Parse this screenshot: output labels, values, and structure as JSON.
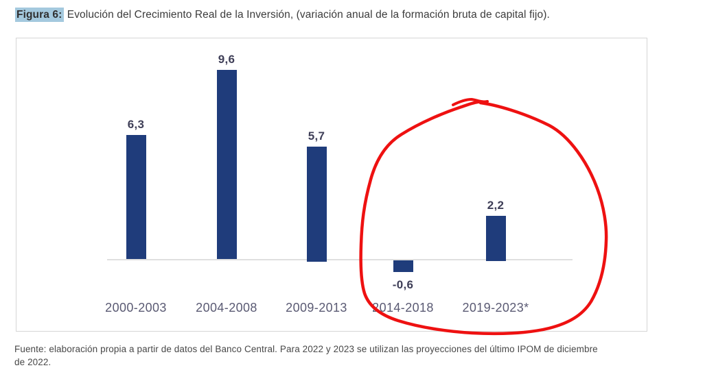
{
  "figure": {
    "label": "Figura 6:",
    "title": " Evolución del Crecimiento Real de la Inversión, (variación anual de la formación bruta de capital fijo).",
    "source_line1": "Fuente: elaboración propia a partir de datos del Banco Central. Para 2022 y 2023 se utilizan las proyecciones del último IPOM de diciembre",
    "source_line2": "de 2022."
  },
  "chart_data": {
    "type": "bar",
    "title": "Evolución del Crecimiento Real de la Inversión (variación anual de la formación bruta de capital fijo)",
    "categories": [
      "2000-2003",
      "2004-2008",
      "2009-2013",
      "2014-2018",
      "2019-2023*"
    ],
    "values": [
      6.3,
      9.6,
      5.7,
      -0.6,
      2.2
    ],
    "value_labels": [
      "6,3",
      "9,6",
      "5,7",
      "-0,6",
      "2,2"
    ],
    "xlabel": "",
    "ylabel": "",
    "ylim": [
      -2,
      10.5
    ],
    "grid": false,
    "legend": false,
    "annotation": "hand-drawn red circle around the 2014-2018 and 2019-2023* bars"
  },
  "colors": {
    "bar": "#1f3c7b",
    "value_label": "#3e3e57",
    "category_label": "#5a5a73",
    "axis_line": "#dfdfdf",
    "box_border": "#d5d5d5",
    "figure_label_highlight": "#a4c9de",
    "title_text": "#3b3b3b",
    "source_text": "#484848",
    "circle": "#ee1111"
  }
}
